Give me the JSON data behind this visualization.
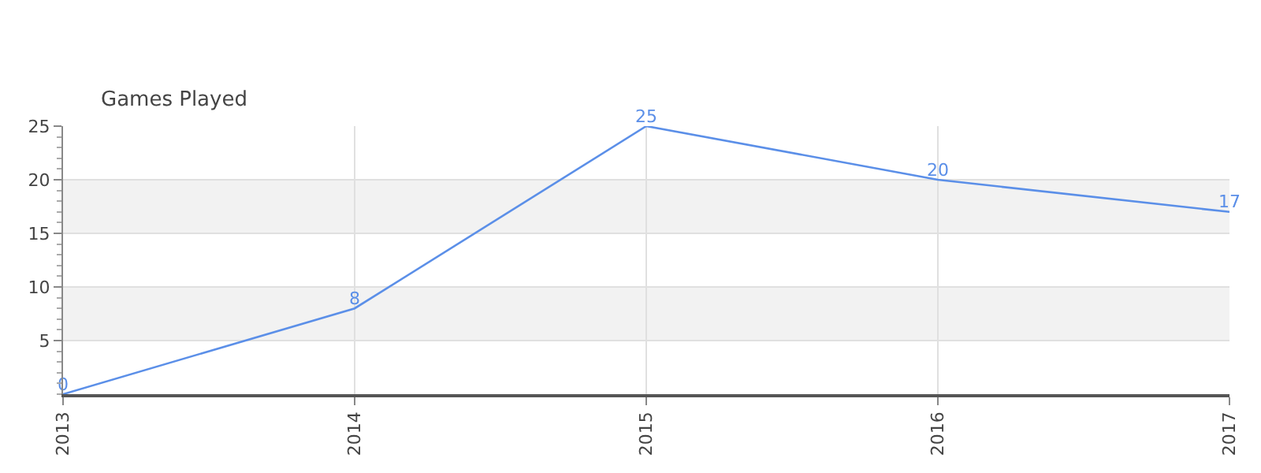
{
  "chart_data": {
    "type": "line",
    "ylabel": "Games Played",
    "categories": [
      "2013",
      "2014",
      "2015",
      "2016",
      "2017"
    ],
    "series": [
      {
        "color": "#5b8fe8",
        "values": [
          0,
          8,
          25,
          20,
          17
        ]
      }
    ],
    "ylim": [
      0,
      25
    ],
    "yticks": [
      5,
      10,
      15,
      20,
      25
    ],
    "bands": [
      {
        "axis": "y",
        "from": 5,
        "to": 10,
        "color": "#f2f2f2"
      },
      {
        "axis": "y",
        "from": 15,
        "to": 20,
        "color": "#f2f2f2"
      }
    ],
    "grid": true,
    "data_labels": true,
    "marker": "none",
    "line_style": "solid",
    "legend": false
  }
}
